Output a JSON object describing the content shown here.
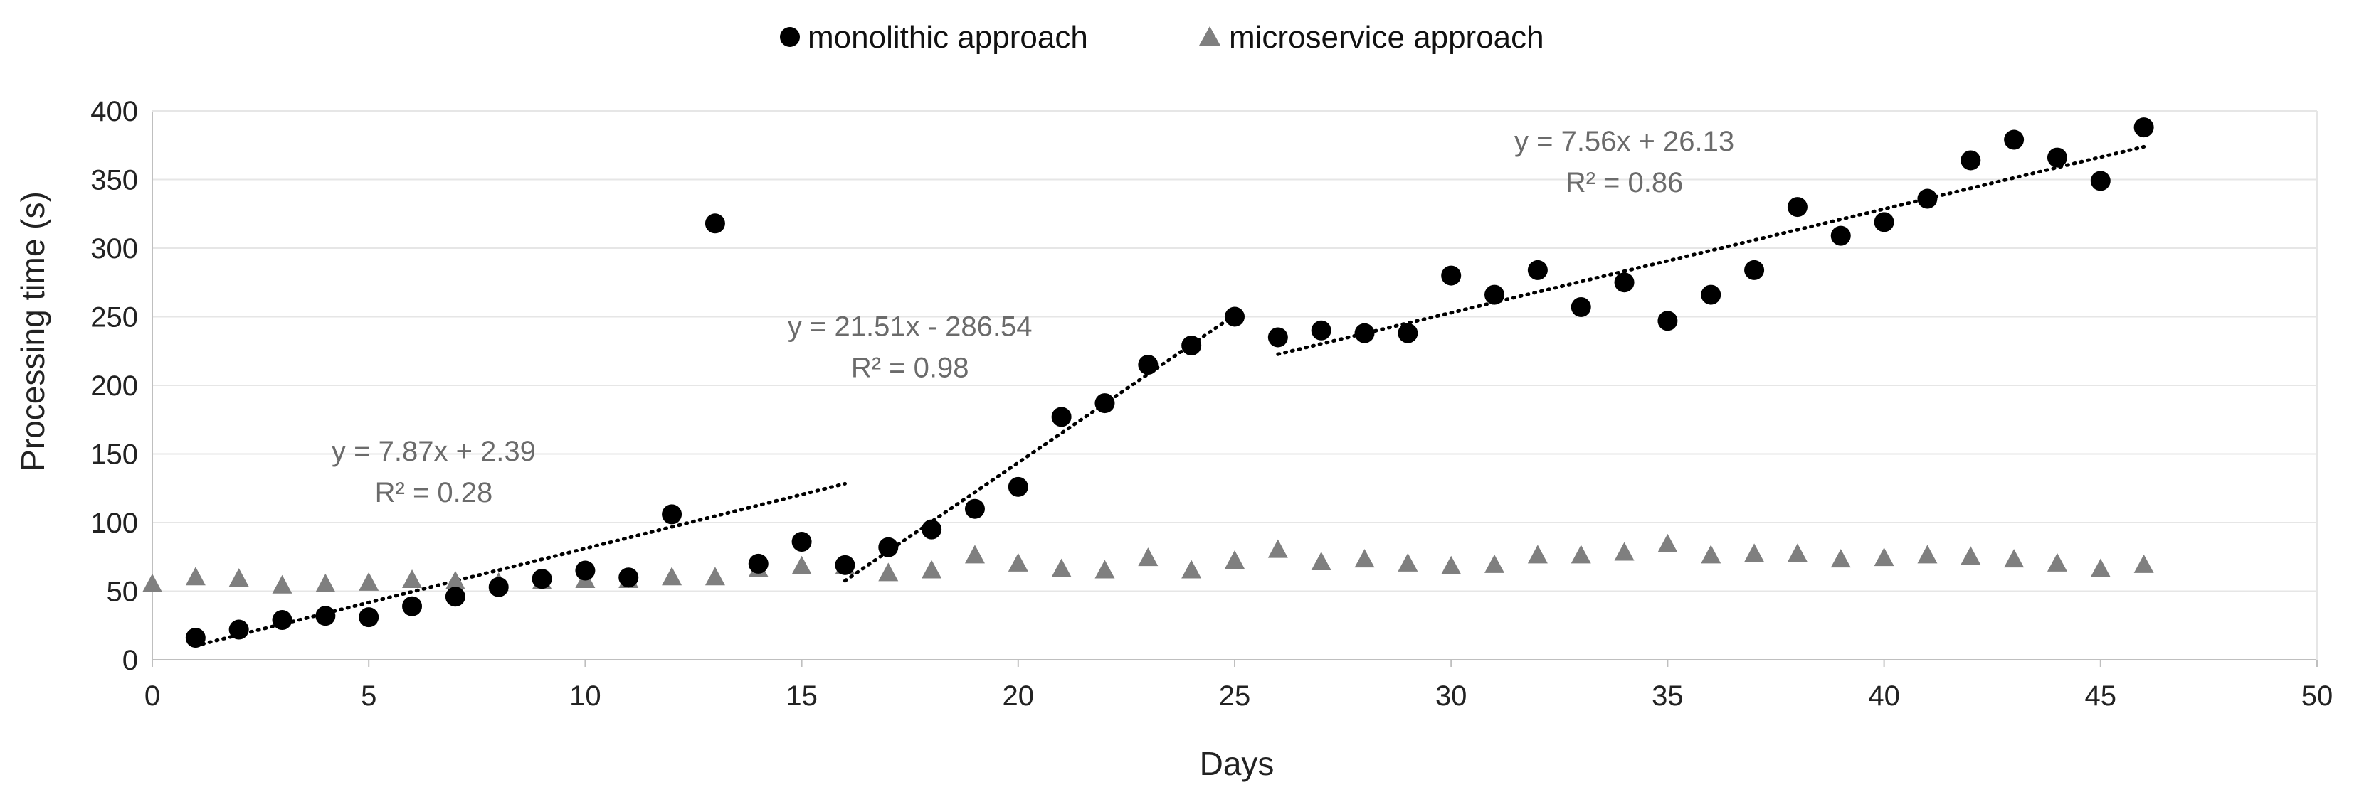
{
  "chart_data": {
    "type": "scatter",
    "title": "",
    "xlabel": "Days",
    "ylabel": "Processing time (s)",
    "xlim": [
      0,
      50
    ],
    "ylim": [
      0,
      400
    ],
    "xticks": [
      0,
      5,
      10,
      15,
      20,
      25,
      30,
      35,
      40,
      45,
      50
    ],
    "yticks": [
      0,
      50,
      100,
      150,
      200,
      250,
      300,
      350,
      400
    ],
    "grid": true,
    "legend_position": "top-center",
    "colors": {
      "monolithic": "#000000",
      "microservice": "#7f7f7f",
      "grid": "#e6e6e6",
      "axis": "#bfbfbf",
      "trend_text": "#6b6b6b"
    },
    "series": [
      {
        "name": "monolithic approach",
        "marker": "circle",
        "points": [
          [
            1,
            16
          ],
          [
            2,
            22
          ],
          [
            3,
            29
          ],
          [
            4,
            32
          ],
          [
            5,
            31
          ],
          [
            6,
            39
          ],
          [
            7,
            46
          ],
          [
            8,
            53
          ],
          [
            9,
            59
          ],
          [
            10,
            65
          ],
          [
            11,
            60
          ],
          [
            12,
            106
          ],
          [
            13,
            318
          ],
          [
            14,
            70
          ],
          [
            15,
            86
          ],
          [
            16,
            69
          ],
          [
            17,
            82
          ],
          [
            18,
            95
          ],
          [
            19,
            110
          ],
          [
            20,
            126
          ],
          [
            21,
            177
          ],
          [
            22,
            187
          ],
          [
            23,
            215
          ],
          [
            24,
            229
          ],
          [
            25,
            250
          ],
          [
            26,
            235
          ],
          [
            27,
            240
          ],
          [
            28,
            238
          ],
          [
            29,
            238
          ],
          [
            30,
            280
          ],
          [
            31,
            266
          ],
          [
            32,
            284
          ],
          [
            33,
            257
          ],
          [
            34,
            275
          ],
          [
            35,
            247
          ],
          [
            36,
            266
          ],
          [
            37,
            284
          ],
          [
            38,
            330
          ],
          [
            39,
            309
          ],
          [
            40,
            319
          ],
          [
            41,
            336
          ],
          [
            42,
            364
          ],
          [
            43,
            379
          ],
          [
            44,
            366
          ],
          [
            45,
            349
          ],
          [
            46,
            388
          ]
        ]
      },
      {
        "name": "microservice approach",
        "marker": "triangle",
        "points": [
          [
            0,
            55
          ],
          [
            1,
            60
          ],
          [
            2,
            59
          ],
          [
            3,
            54
          ],
          [
            4,
            55
          ],
          [
            5,
            56
          ],
          [
            6,
            58
          ],
          [
            7,
            57
          ],
          [
            8,
            56
          ],
          [
            9,
            57
          ],
          [
            10,
            58
          ],
          [
            11,
            58
          ],
          [
            12,
            60
          ],
          [
            13,
            60
          ],
          [
            14,
            66
          ],
          [
            15,
            68
          ],
          [
            16,
            68
          ],
          [
            17,
            63
          ],
          [
            18,
            65
          ],
          [
            19,
            76
          ],
          [
            20,
            70
          ],
          [
            21,
            66
          ],
          [
            22,
            65
          ],
          [
            23,
            74
          ],
          [
            24,
            65
          ],
          [
            25,
            72
          ],
          [
            26,
            80
          ],
          [
            27,
            71
          ],
          [
            28,
            73
          ],
          [
            29,
            70
          ],
          [
            30,
            68
          ],
          [
            31,
            69
          ],
          [
            32,
            76
          ],
          [
            33,
            76
          ],
          [
            34,
            78
          ],
          [
            35,
            84
          ],
          [
            36,
            76
          ],
          [
            37,
            77
          ],
          [
            38,
            77
          ],
          [
            39,
            73
          ],
          [
            40,
            74
          ],
          [
            41,
            76
          ],
          [
            42,
            75
          ],
          [
            43,
            73
          ],
          [
            44,
            70
          ],
          [
            45,
            66
          ],
          [
            46,
            69
          ]
        ]
      }
    ],
    "trendlines": [
      {
        "segment": "days 1-16",
        "x_range": [
          1,
          16
        ],
        "slope": 7.87,
        "intercept": 2.39,
        "equation": "y = 7.87x + 2.39",
        "r2": "R² = 0.28",
        "label_x": 6.5,
        "label_y": 145
      },
      {
        "segment": "days 16-25",
        "x_range": [
          16,
          25
        ],
        "slope": 21.51,
        "intercept": -286.54,
        "equation": "y = 21.51x - 286.54",
        "r2": "R² = 0.98",
        "label_x": 17.5,
        "label_y": 236
      },
      {
        "segment": "days 26-46",
        "x_range": [
          26,
          46
        ],
        "slope": 7.56,
        "intercept": 26.13,
        "equation": "y = 7.56x + 26.13",
        "r2": "R² = 0.86",
        "label_x": 34,
        "label_y": 371
      }
    ]
  }
}
